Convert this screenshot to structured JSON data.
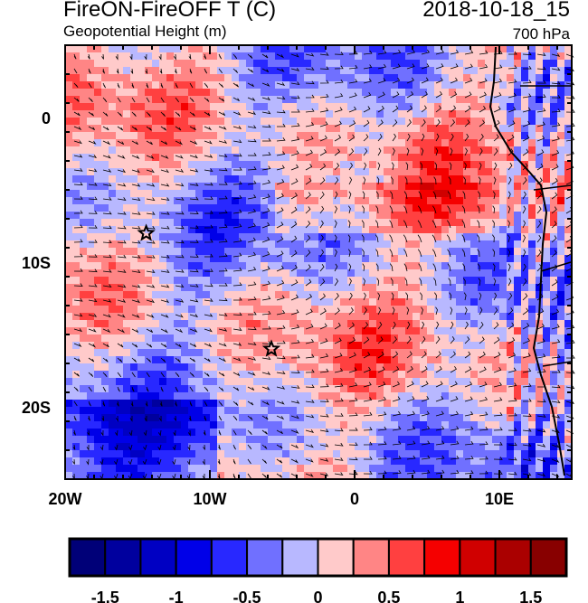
{
  "title": {
    "left": "FireON-FireOFF T (C)",
    "right": "2018-10-18_15",
    "sub_left": "Geopotential Height (m)",
    "sub_right": "700 hPa"
  },
  "chart_data": {
    "type": "heatmap",
    "variable": "FireON-FireOFF T (C)",
    "overlay": "wind barbs, geopotential height",
    "lon_range": [
      -20,
      15
    ],
    "lat_range": [
      -25,
      5
    ],
    "x_ticks": [
      {
        "value": -20,
        "label": "20W"
      },
      {
        "value": -10,
        "label": "10W"
      },
      {
        "value": 0,
        "label": "0"
      },
      {
        "value": 10,
        "label": "10E"
      }
    ],
    "y_ticks": [
      {
        "value": 0,
        "label": "0"
      },
      {
        "value": -10,
        "label": "10S"
      },
      {
        "value": -20,
        "label": "20S"
      }
    ],
    "markers": [
      {
        "symbol": "star",
        "lon": -14.4,
        "lat": -8
      },
      {
        "symbol": "star",
        "lon": -5.75,
        "lat": -16
      }
    ],
    "colorbar": {
      "levels": [
        -1.5,
        -1.25,
        -1,
        -0.75,
        -0.5,
        -0.25,
        0,
        0.25,
        0.5,
        0.75,
        1,
        1.25,
        1.5
      ],
      "labels": [
        "-1.5",
        "-1",
        "-0.5",
        "0",
        "0.5",
        "1",
        "1.5"
      ],
      "colors": [
        "#000078",
        "#00009e",
        "#0000c3",
        "#0000e8",
        "#2828ff",
        "#7070ff",
        "#b8b8ff",
        "#ffcaca",
        "#ff8585",
        "#ff4040",
        "#f50000",
        "#d00000",
        "#aa0000",
        "#880000"
      ]
    }
  }
}
